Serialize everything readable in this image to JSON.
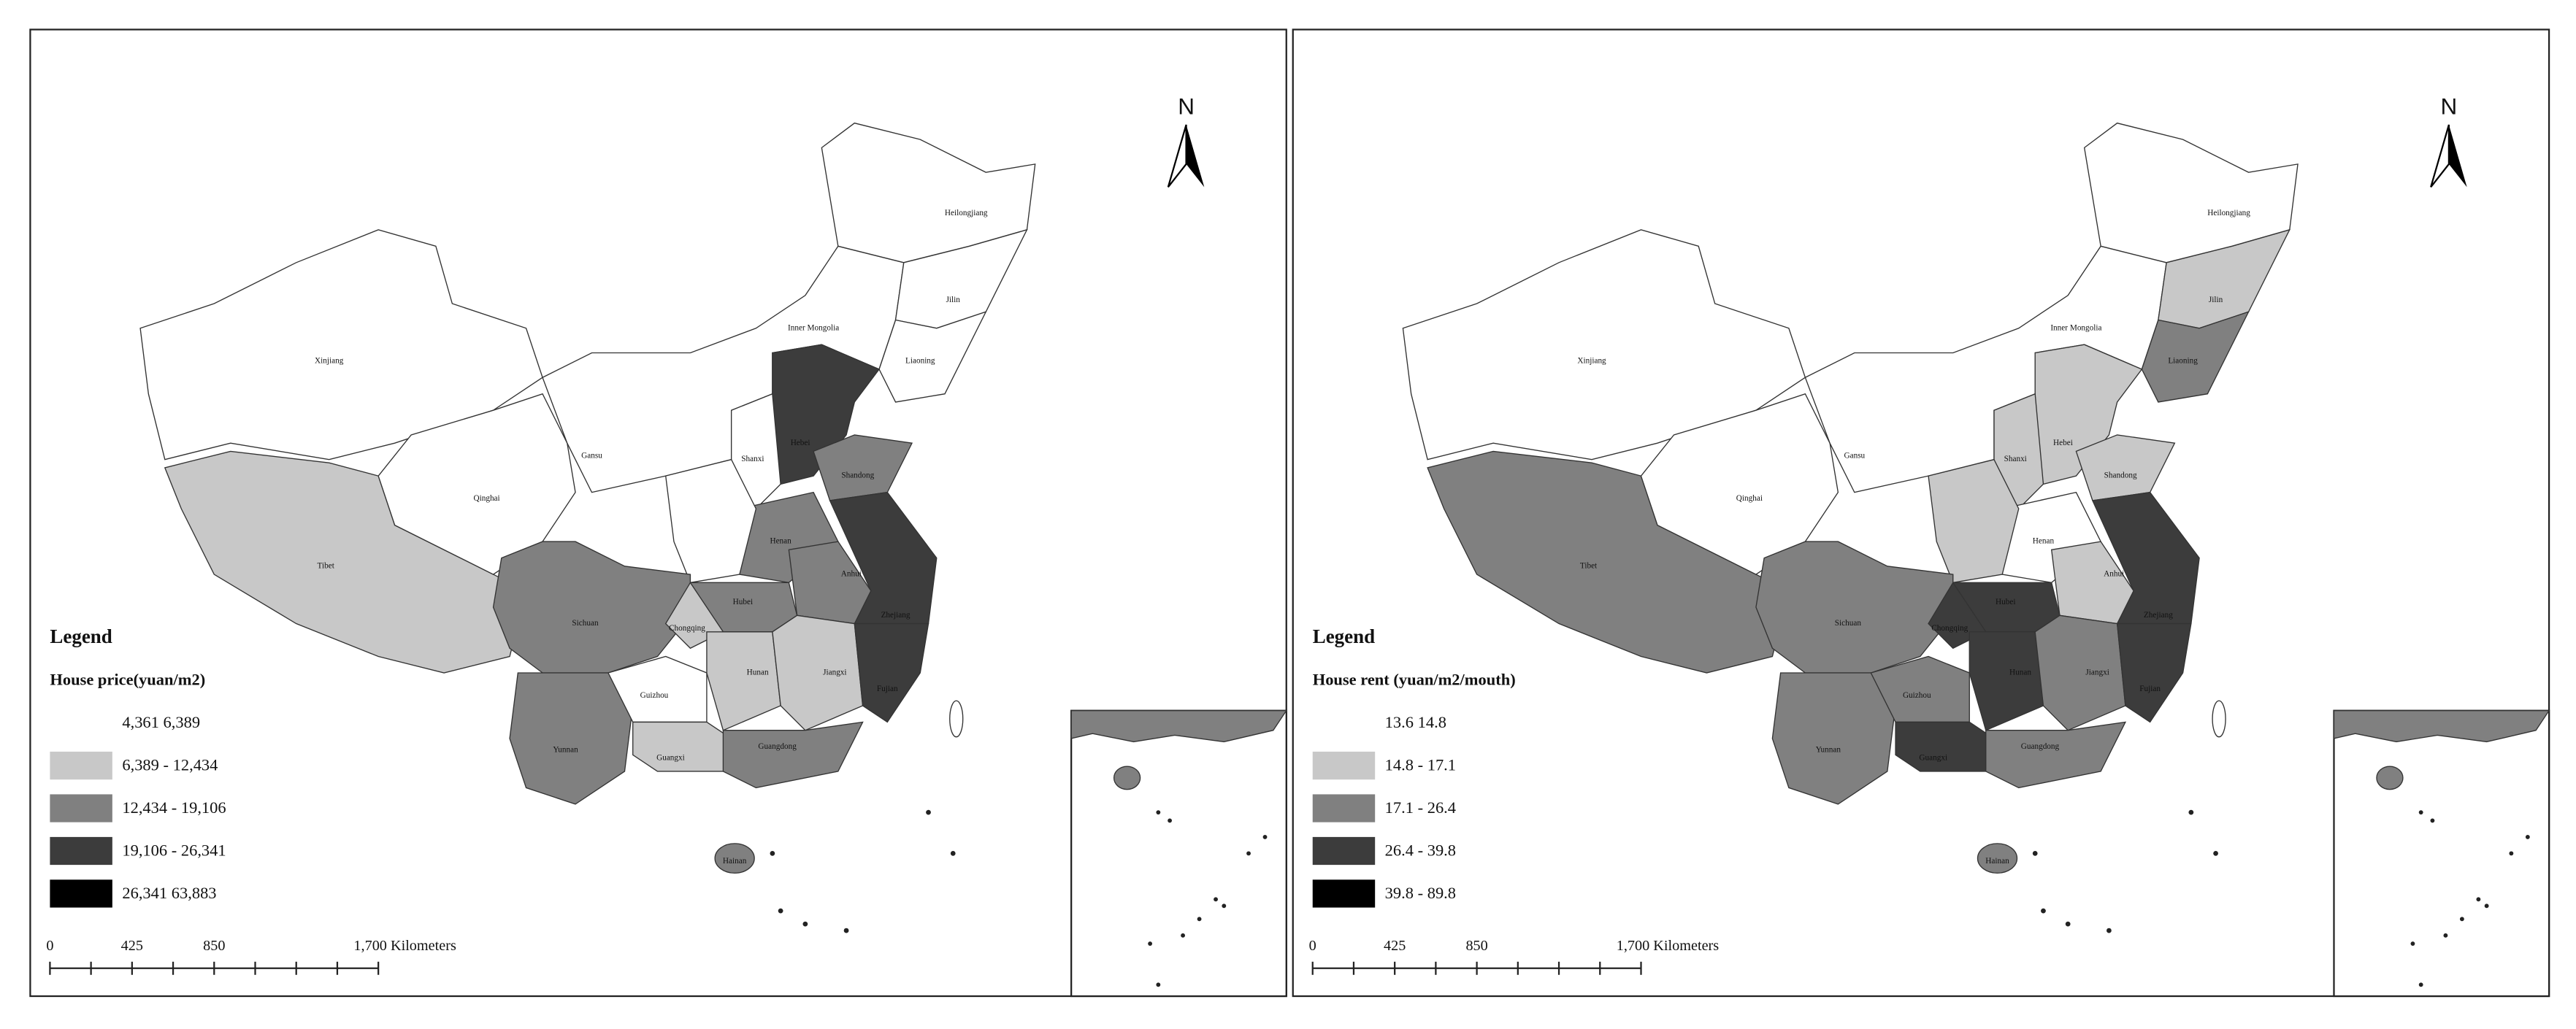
{
  "maps": [
    {
      "legend_heading": "Legend",
      "legend_title": "House price(yuan/m2)",
      "classes": [
        {
          "label": "4,361 6,389",
          "color": "#ffffff"
        },
        {
          "label": "6,389 - 12,434",
          "color": "#c8c8c8"
        },
        {
          "label": "12,434 - 19,106",
          "color": "#808080"
        },
        {
          "label": "19,106 - 26,341",
          "color": "#3c3c3c"
        },
        {
          "label": "26,341 63,883",
          "color": "#000000"
        }
      ],
      "north": "N",
      "scale_labels": [
        "0",
        "425",
        "850",
        "1,700 Kilometers"
      ],
      "province_labels": [
        "Xinjiang",
        "Tibet",
        "Qinghai",
        "Inner Mongolia",
        "Heilongjiang",
        "Jilin",
        "Liaoning",
        "Hebei",
        "Shanxi",
        "Shandong",
        "Henan",
        "Anhui",
        "Hubei",
        "Sichuan",
        "Chongqing",
        "Yunnan",
        "Guizhou",
        "Hunan",
        "Jiangxi",
        "Fujian",
        "Guangxi",
        "Guangdong",
        "Hainan",
        "Zhejiang",
        "Gansu"
      ]
    },
    {
      "legend_heading": "Legend",
      "legend_title": "House rent (yuan/m2/mouth)",
      "classes": [
        {
          "label": "13.6 14.8",
          "color": "#ffffff"
        },
        {
          "label": "14.8 - 17.1",
          "color": "#c8c8c8"
        },
        {
          "label": "17.1 - 26.4",
          "color": "#808080"
        },
        {
          "label": "26.4 - 39.8",
          "color": "#3c3c3c"
        },
        {
          "label": "39.8 - 89.8",
          "color": "#000000"
        }
      ],
      "north": "N",
      "scale_labels": [
        "0",
        "425",
        "850",
        "1,700 Kilometers"
      ],
      "province_labels": [
        "Xinjiang",
        "Tibet",
        "Qinghai",
        "Inner Mongolia",
        "Heilongjiang",
        "Jilin",
        "Liaoning",
        "Hebei",
        "Shanxi",
        "Shandong",
        "Henan",
        "Anhui",
        "Hubei",
        "Sichuan",
        "Chongqing",
        "Yunnan",
        "Guizhou",
        "Hunan",
        "Jiangxi",
        "Fujian",
        "Guangxi",
        "Guangdong",
        "Hainan",
        "Zhejiang",
        "Gansu"
      ]
    }
  ]
}
